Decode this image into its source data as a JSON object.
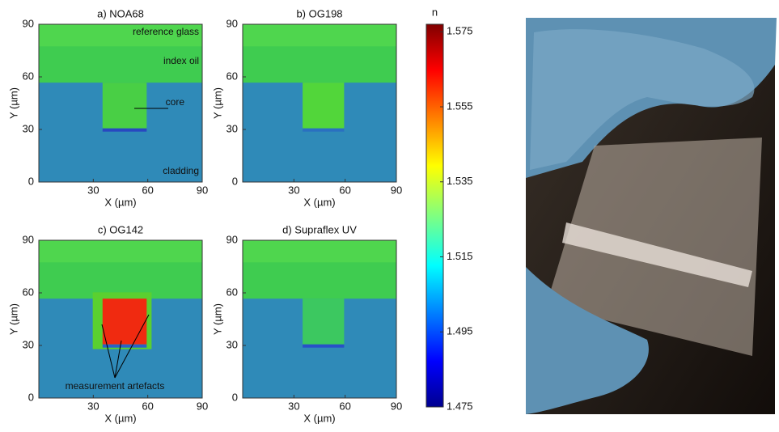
{
  "chart_data": [
    {
      "type": "heatmap",
      "title": "a) NOA68",
      "xlabel": "X (µm)",
      "ylabel": "Y (µm)",
      "xlim": [
        0,
        90
      ],
      "ylim": [
        0,
        90
      ],
      "xticks": [
        30,
        60,
        90
      ],
      "yticks": [
        0,
        30,
        60,
        90
      ],
      "annotations": [
        "reference glass",
        "index oil",
        "core",
        "cladding"
      ]
    },
    {
      "type": "heatmap",
      "title": "b) OG198",
      "xlabel": "X (µm)",
      "ylabel": "Y (µm)",
      "xlim": [
        0,
        90
      ],
      "ylim": [
        0,
        90
      ],
      "xticks": [
        30,
        60,
        90
      ],
      "yticks": [
        0,
        30,
        60,
        90
      ]
    },
    {
      "type": "heatmap",
      "title": "c) OG142",
      "xlabel": "X (µm)",
      "ylabel": "Y (µm)",
      "xlim": [
        0,
        90
      ],
      "ylim": [
        0,
        90
      ],
      "xticks": [
        30,
        60,
        90
      ],
      "yticks": [
        0,
        30,
        60,
        90
      ],
      "annotations": [
        "measurement artefacts"
      ]
    },
    {
      "type": "heatmap",
      "title": "d) Supraflex UV",
      "xlabel": "X (µm)",
      "ylabel": "Y (µm)",
      "xlim": [
        0,
        90
      ],
      "ylim": [
        0,
        90
      ],
      "xticks": [
        30,
        60,
        90
      ],
      "yticks": [
        0,
        30,
        60,
        90
      ]
    },
    {
      "type": "colorbar",
      "label": "n",
      "ylim": [
        1.475,
        1.577
      ],
      "yticks": [
        1.475,
        1.495,
        1.515,
        1.535,
        1.555,
        1.575
      ]
    }
  ]
}
